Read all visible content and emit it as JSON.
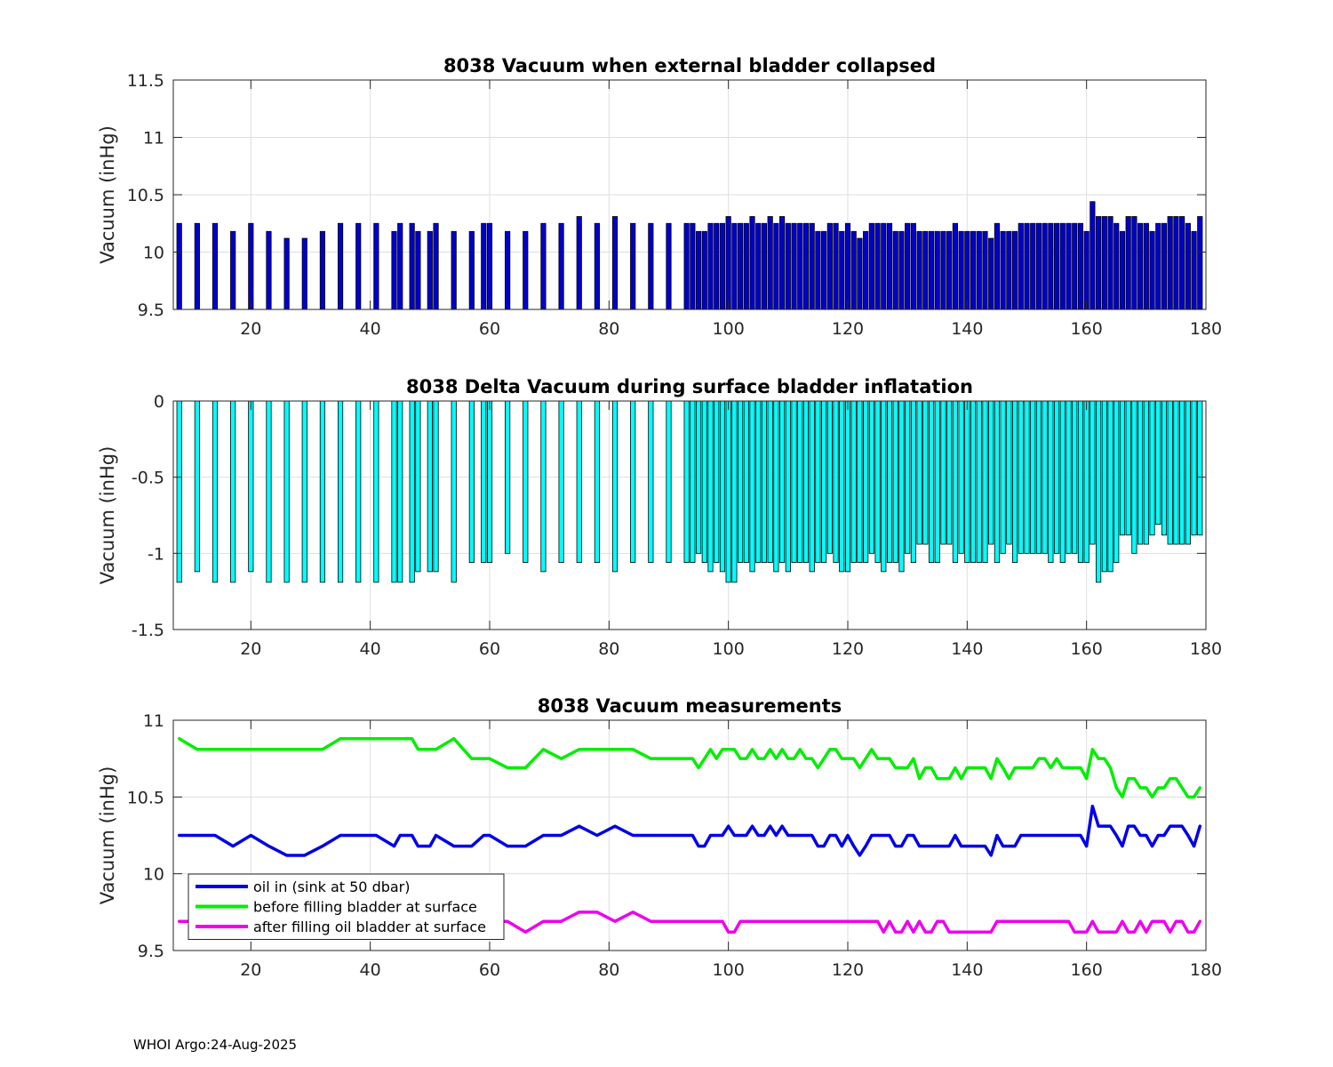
{
  "footer_text": "WHOI Argo:24-Aug-2025",
  "chart_data": [
    {
      "type": "bar",
      "title": "8038 Vacuum when external bladder collapsed",
      "xlabel": "",
      "ylabel": "Vacuum (inHg)",
      "xlim": [
        7,
        180
      ],
      "ylim": [
        9.5,
        11.5
      ],
      "yticks": [
        "9.5",
        "10",
        "10.5",
        "11",
        "11.5"
      ],
      "xticks": [
        "20",
        "40",
        "60",
        "80",
        "100",
        "120",
        "140",
        "160",
        "180"
      ],
      "grid": true,
      "bar_color": "#0000cd",
      "x": [
        8,
        11,
        14,
        17,
        20,
        23,
        26,
        29,
        32,
        35,
        38,
        41,
        44,
        45,
        47,
        48,
        50,
        51,
        54,
        57,
        59,
        60,
        63,
        66,
        69,
        72,
        75,
        78,
        81,
        84,
        87,
        90,
        93,
        94,
        95,
        96,
        97,
        98,
        99,
        100,
        101,
        102,
        103,
        104,
        105,
        106,
        107,
        108,
        109,
        110,
        111,
        112,
        113,
        114,
        115,
        116,
        117,
        118,
        119,
        120,
        121,
        122,
        123,
        124,
        125,
        126,
        127,
        128,
        129,
        130,
        131,
        132,
        133,
        134,
        135,
        136,
        137,
        138,
        139,
        140,
        141,
        142,
        143,
        144,
        145,
        146,
        147,
        148,
        149,
        150,
        151,
        152,
        153,
        154,
        155,
        156,
        157,
        158,
        159,
        160,
        161,
        162,
        163,
        164,
        165,
        166,
        167,
        168,
        169,
        170,
        171,
        172,
        173,
        174,
        175,
        176,
        177,
        178,
        179
      ],
      "values": [
        10.25,
        10.25,
        10.25,
        10.18,
        10.25,
        10.18,
        10.12,
        10.12,
        10.18,
        10.25,
        10.25,
        10.25,
        10.18,
        10.25,
        10.25,
        10.18,
        10.18,
        10.25,
        10.18,
        10.18,
        10.25,
        10.25,
        10.18,
        10.18,
        10.25,
        10.25,
        10.31,
        10.25,
        10.31,
        10.25,
        10.25,
        10.25,
        10.25,
        10.25,
        10.18,
        10.18,
        10.25,
        10.25,
        10.25,
        10.31,
        10.25,
        10.25,
        10.25,
        10.31,
        10.25,
        10.25,
        10.31,
        10.25,
        10.31,
        10.25,
        10.25,
        10.25,
        10.25,
        10.25,
        10.18,
        10.18,
        10.25,
        10.25,
        10.18,
        10.25,
        10.18,
        10.12,
        10.18,
        10.25,
        10.25,
        10.25,
        10.25,
        10.18,
        10.18,
        10.25,
        10.25,
        10.18,
        10.18,
        10.18,
        10.18,
        10.18,
        10.18,
        10.25,
        10.18,
        10.18,
        10.18,
        10.18,
        10.18,
        10.12,
        10.25,
        10.18,
        10.18,
        10.18,
        10.25,
        10.25,
        10.25,
        10.25,
        10.25,
        10.25,
        10.25,
        10.25,
        10.25,
        10.25,
        10.25,
        10.18,
        10.44,
        10.31,
        10.31,
        10.31,
        10.25,
        10.18,
        10.31,
        10.31,
        10.25,
        10.25,
        10.18,
        10.25,
        10.25,
        10.31,
        10.31,
        10.31,
        10.25,
        10.18,
        10.31
      ]
    },
    {
      "type": "bar",
      "title": "8038 Delta Vacuum during surface bladder inflatation",
      "xlabel": "",
      "ylabel": "Vacuum (inHg)",
      "xlim": [
        7,
        180
      ],
      "ylim": [
        -1.5,
        0
      ],
      "yticks": [
        "-1.5",
        "-1",
        "-0.5",
        "0"
      ],
      "xticks": [
        "20",
        "40",
        "60",
        "80",
        "100",
        "120",
        "140",
        "160",
        "180"
      ],
      "grid": true,
      "bar_color": "#00ffff",
      "x": [
        8,
        11,
        14,
        17,
        20,
        23,
        26,
        29,
        32,
        35,
        38,
        41,
        44,
        45,
        47,
        48,
        50,
        51,
        54,
        57,
        59,
        60,
        63,
        66,
        69,
        72,
        75,
        78,
        81,
        84,
        87,
        90,
        93,
        94,
        95,
        96,
        97,
        98,
        99,
        100,
        101,
        102,
        103,
        104,
        105,
        106,
        107,
        108,
        109,
        110,
        111,
        112,
        113,
        114,
        115,
        116,
        117,
        118,
        119,
        120,
        121,
        122,
        123,
        124,
        125,
        126,
        127,
        128,
        129,
        130,
        131,
        132,
        133,
        134,
        135,
        136,
        137,
        138,
        139,
        140,
        141,
        142,
        143,
        144,
        145,
        146,
        147,
        148,
        149,
        150,
        151,
        152,
        153,
        154,
        155,
        156,
        157,
        158,
        159,
        160,
        161,
        162,
        163,
        164,
        165,
        166,
        167,
        168,
        169,
        170,
        171,
        172,
        173,
        174,
        175,
        176,
        177,
        178,
        179
      ],
      "values": [
        -1.19,
        -1.12,
        -1.19,
        -1.19,
        -1.12,
        -1.19,
        -1.19,
        -1.19,
        -1.19,
        -1.19,
        -1.19,
        -1.19,
        -1.19,
        -1.19,
        -1.19,
        -1.12,
        -1.12,
        -1.12,
        -1.19,
        -1.06,
        -1.06,
        -1.06,
        -1.0,
        -1.06,
        -1.12,
        -1.06,
        -1.06,
        -1.06,
        -1.12,
        -1.06,
        -1.06,
        -1.06,
        -1.06,
        -1.06,
        -1.0,
        -1.06,
        -1.12,
        -1.06,
        -1.12,
        -1.19,
        -1.19,
        -1.06,
        -1.06,
        -1.12,
        -1.06,
        -1.06,
        -1.06,
        -1.12,
        -1.06,
        -1.12,
        -1.06,
        -1.06,
        -1.06,
        -1.12,
        -1.06,
        -1.06,
        -1.0,
        -1.06,
        -1.12,
        -1.12,
        -1.06,
        -1.06,
        -1.06,
        -1.0,
        -1.06,
        -1.12,
        -1.06,
        -1.06,
        -1.12,
        -1.0,
        -1.06,
        -0.94,
        -0.94,
        -1.06,
        -1.06,
        -0.94,
        -0.94,
        -1.06,
        -1.0,
        -1.06,
        -1.06,
        -1.06,
        -1.06,
        -0.94,
        -1.06,
        -1.0,
        -0.94,
        -1.06,
        -1.0,
        -1.0,
        -1.0,
        -1.0,
        -1.0,
        -1.06,
        -1.0,
        -1.06,
        -1.0,
        -1.0,
        -1.06,
        -1.06,
        -0.94,
        -1.19,
        -1.12,
        -1.12,
        -1.06,
        -0.88,
        -0.88,
        -1.0,
        -0.94,
        -0.94,
        -0.88,
        -0.81,
        -0.88,
        -0.94,
        -0.94,
        -0.94,
        -0.94,
        -0.88,
        -0.88
      ]
    },
    {
      "type": "line",
      "title": "8038 Vacuum measurements",
      "xlabel": "",
      "ylabel": "Vacuum (inHg)",
      "xlim": [
        7,
        180
      ],
      "ylim": [
        9.5,
        11
      ],
      "yticks": [
        "9.5",
        "10",
        "10.5",
        "11"
      ],
      "xticks": [
        "20",
        "40",
        "60",
        "80",
        "100",
        "120",
        "140",
        "160",
        "180"
      ],
      "grid": true,
      "legend_position": "bottom-left",
      "x": [
        8,
        11,
        14,
        17,
        20,
        23,
        26,
        29,
        32,
        35,
        38,
        41,
        44,
        45,
        47,
        48,
        50,
        51,
        54,
        57,
        59,
        60,
        63,
        66,
        69,
        72,
        75,
        78,
        81,
        84,
        87,
        90,
        93,
        94,
        95,
        96,
        97,
        98,
        99,
        100,
        101,
        102,
        103,
        104,
        105,
        106,
        107,
        108,
        109,
        110,
        111,
        112,
        113,
        114,
        115,
        116,
        117,
        118,
        119,
        120,
        121,
        122,
        123,
        124,
        125,
        126,
        127,
        128,
        129,
        130,
        131,
        132,
        133,
        134,
        135,
        136,
        137,
        138,
        139,
        140,
        141,
        142,
        143,
        144,
        145,
        146,
        147,
        148,
        149,
        150,
        151,
        152,
        153,
        154,
        155,
        156,
        157,
        158,
        159,
        160,
        161,
        162,
        163,
        164,
        165,
        166,
        167,
        168,
        169,
        170,
        171,
        172,
        173,
        174,
        175,
        176,
        177,
        178,
        179
      ],
      "series": [
        {
          "name": "oil in (sink at 50 dbar)",
          "color": "#0000e6",
          "values": [
            10.25,
            10.25,
            10.25,
            10.18,
            10.25,
            10.18,
            10.12,
            10.12,
            10.18,
            10.25,
            10.25,
            10.25,
            10.18,
            10.25,
            10.25,
            10.18,
            10.18,
            10.25,
            10.18,
            10.18,
            10.25,
            10.25,
            10.18,
            10.18,
            10.25,
            10.25,
            10.31,
            10.25,
            10.31,
            10.25,
            10.25,
            10.25,
            10.25,
            10.25,
            10.18,
            10.18,
            10.25,
            10.25,
            10.25,
            10.31,
            10.25,
            10.25,
            10.25,
            10.31,
            10.25,
            10.25,
            10.31,
            10.25,
            10.31,
            10.25,
            10.25,
            10.25,
            10.25,
            10.25,
            10.18,
            10.18,
            10.25,
            10.25,
            10.18,
            10.25,
            10.18,
            10.12,
            10.18,
            10.25,
            10.25,
            10.25,
            10.25,
            10.18,
            10.18,
            10.25,
            10.25,
            10.18,
            10.18,
            10.18,
            10.18,
            10.18,
            10.18,
            10.25,
            10.18,
            10.18,
            10.18,
            10.18,
            10.18,
            10.12,
            10.25,
            10.18,
            10.18,
            10.18,
            10.25,
            10.25,
            10.25,
            10.25,
            10.25,
            10.25,
            10.25,
            10.25,
            10.25,
            10.25,
            10.25,
            10.18,
            10.44,
            10.31,
            10.31,
            10.31,
            10.25,
            10.18,
            10.31,
            10.31,
            10.25,
            10.25,
            10.18,
            10.25,
            10.25,
            10.31,
            10.31,
            10.31,
            10.25,
            10.18,
            10.31
          ]
        },
        {
          "name": "before filling bladder at surface",
          "color": "#00ee00",
          "values": [
            10.88,
            10.81,
            10.81,
            10.81,
            10.81,
            10.81,
            10.81,
            10.81,
            10.81,
            10.88,
            10.88,
            10.88,
            10.88,
            10.88,
            10.88,
            10.81,
            10.81,
            10.81,
            10.88,
            10.75,
            10.75,
            10.75,
            10.69,
            10.69,
            10.81,
            10.75,
            10.81,
            10.81,
            10.81,
            10.81,
            10.75,
            10.75,
            10.75,
            10.75,
            10.69,
            10.75,
            10.81,
            10.75,
            10.81,
            10.81,
            10.81,
            10.75,
            10.75,
            10.81,
            10.75,
            10.75,
            10.81,
            10.75,
            10.81,
            10.75,
            10.75,
            10.81,
            10.75,
            10.75,
            10.69,
            10.75,
            10.81,
            10.81,
            10.75,
            10.75,
            10.75,
            10.69,
            10.75,
            10.81,
            10.75,
            10.75,
            10.75,
            10.69,
            10.69,
            10.69,
            10.75,
            10.62,
            10.69,
            10.69,
            10.62,
            10.62,
            10.62,
            10.69,
            10.62,
            10.69,
            10.69,
            10.69,
            10.69,
            10.62,
            10.75,
            10.69,
            10.62,
            10.69,
            10.69,
            10.69,
            10.69,
            10.75,
            10.75,
            10.69,
            10.75,
            10.69,
            10.69,
            10.69,
            10.69,
            10.62,
            10.81,
            10.75,
            10.75,
            10.69,
            10.56,
            10.5,
            10.62,
            10.62,
            10.56,
            10.56,
            10.5,
            10.56,
            10.56,
            10.62,
            10.62,
            10.56,
            10.5,
            10.5,
            10.56
          ]
        },
        {
          "name": "after filling oil bladder at surface",
          "color": "#ee00ee",
          "values": [
            9.69,
            9.69,
            9.69,
            9.69,
            9.69,
            9.69,
            9.69,
            9.69,
            9.69,
            9.69,
            9.69,
            9.69,
            9.69,
            9.69,
            9.69,
            9.69,
            9.69,
            9.69,
            9.69,
            9.69,
            9.69,
            9.69,
            9.69,
            9.62,
            9.69,
            9.69,
            9.75,
            9.75,
            9.69,
            9.75,
            9.69,
            9.69,
            9.69,
            9.69,
            9.69,
            9.69,
            9.69,
            9.69,
            9.69,
            9.62,
            9.62,
            9.69,
            9.69,
            9.69,
            9.69,
            9.69,
            9.69,
            9.69,
            9.69,
            9.69,
            9.69,
            9.69,
            9.69,
            9.69,
            9.69,
            9.69,
            9.69,
            9.69,
            9.69,
            9.69,
            9.69,
            9.69,
            9.69,
            9.69,
            9.69,
            9.62,
            9.69,
            9.62,
            9.62,
            9.69,
            9.62,
            9.69,
            9.62,
            9.62,
            9.69,
            9.69,
            9.62,
            9.62,
            9.62,
            9.62,
            9.62,
            9.62,
            9.62,
            9.62,
            9.69,
            9.69,
            9.69,
            9.69,
            9.69,
            9.69,
            9.69,
            9.69,
            9.69,
            9.69,
            9.69,
            9.69,
            9.69,
            9.62,
            9.62,
            9.62,
            9.69,
            9.62,
            9.62,
            9.62,
            9.62,
            9.69,
            9.62,
            9.62,
            9.69,
            9.62,
            9.69,
            9.69,
            9.69,
            9.62,
            9.69,
            9.69,
            9.62,
            9.62,
            9.69
          ]
        }
      ]
    }
  ]
}
